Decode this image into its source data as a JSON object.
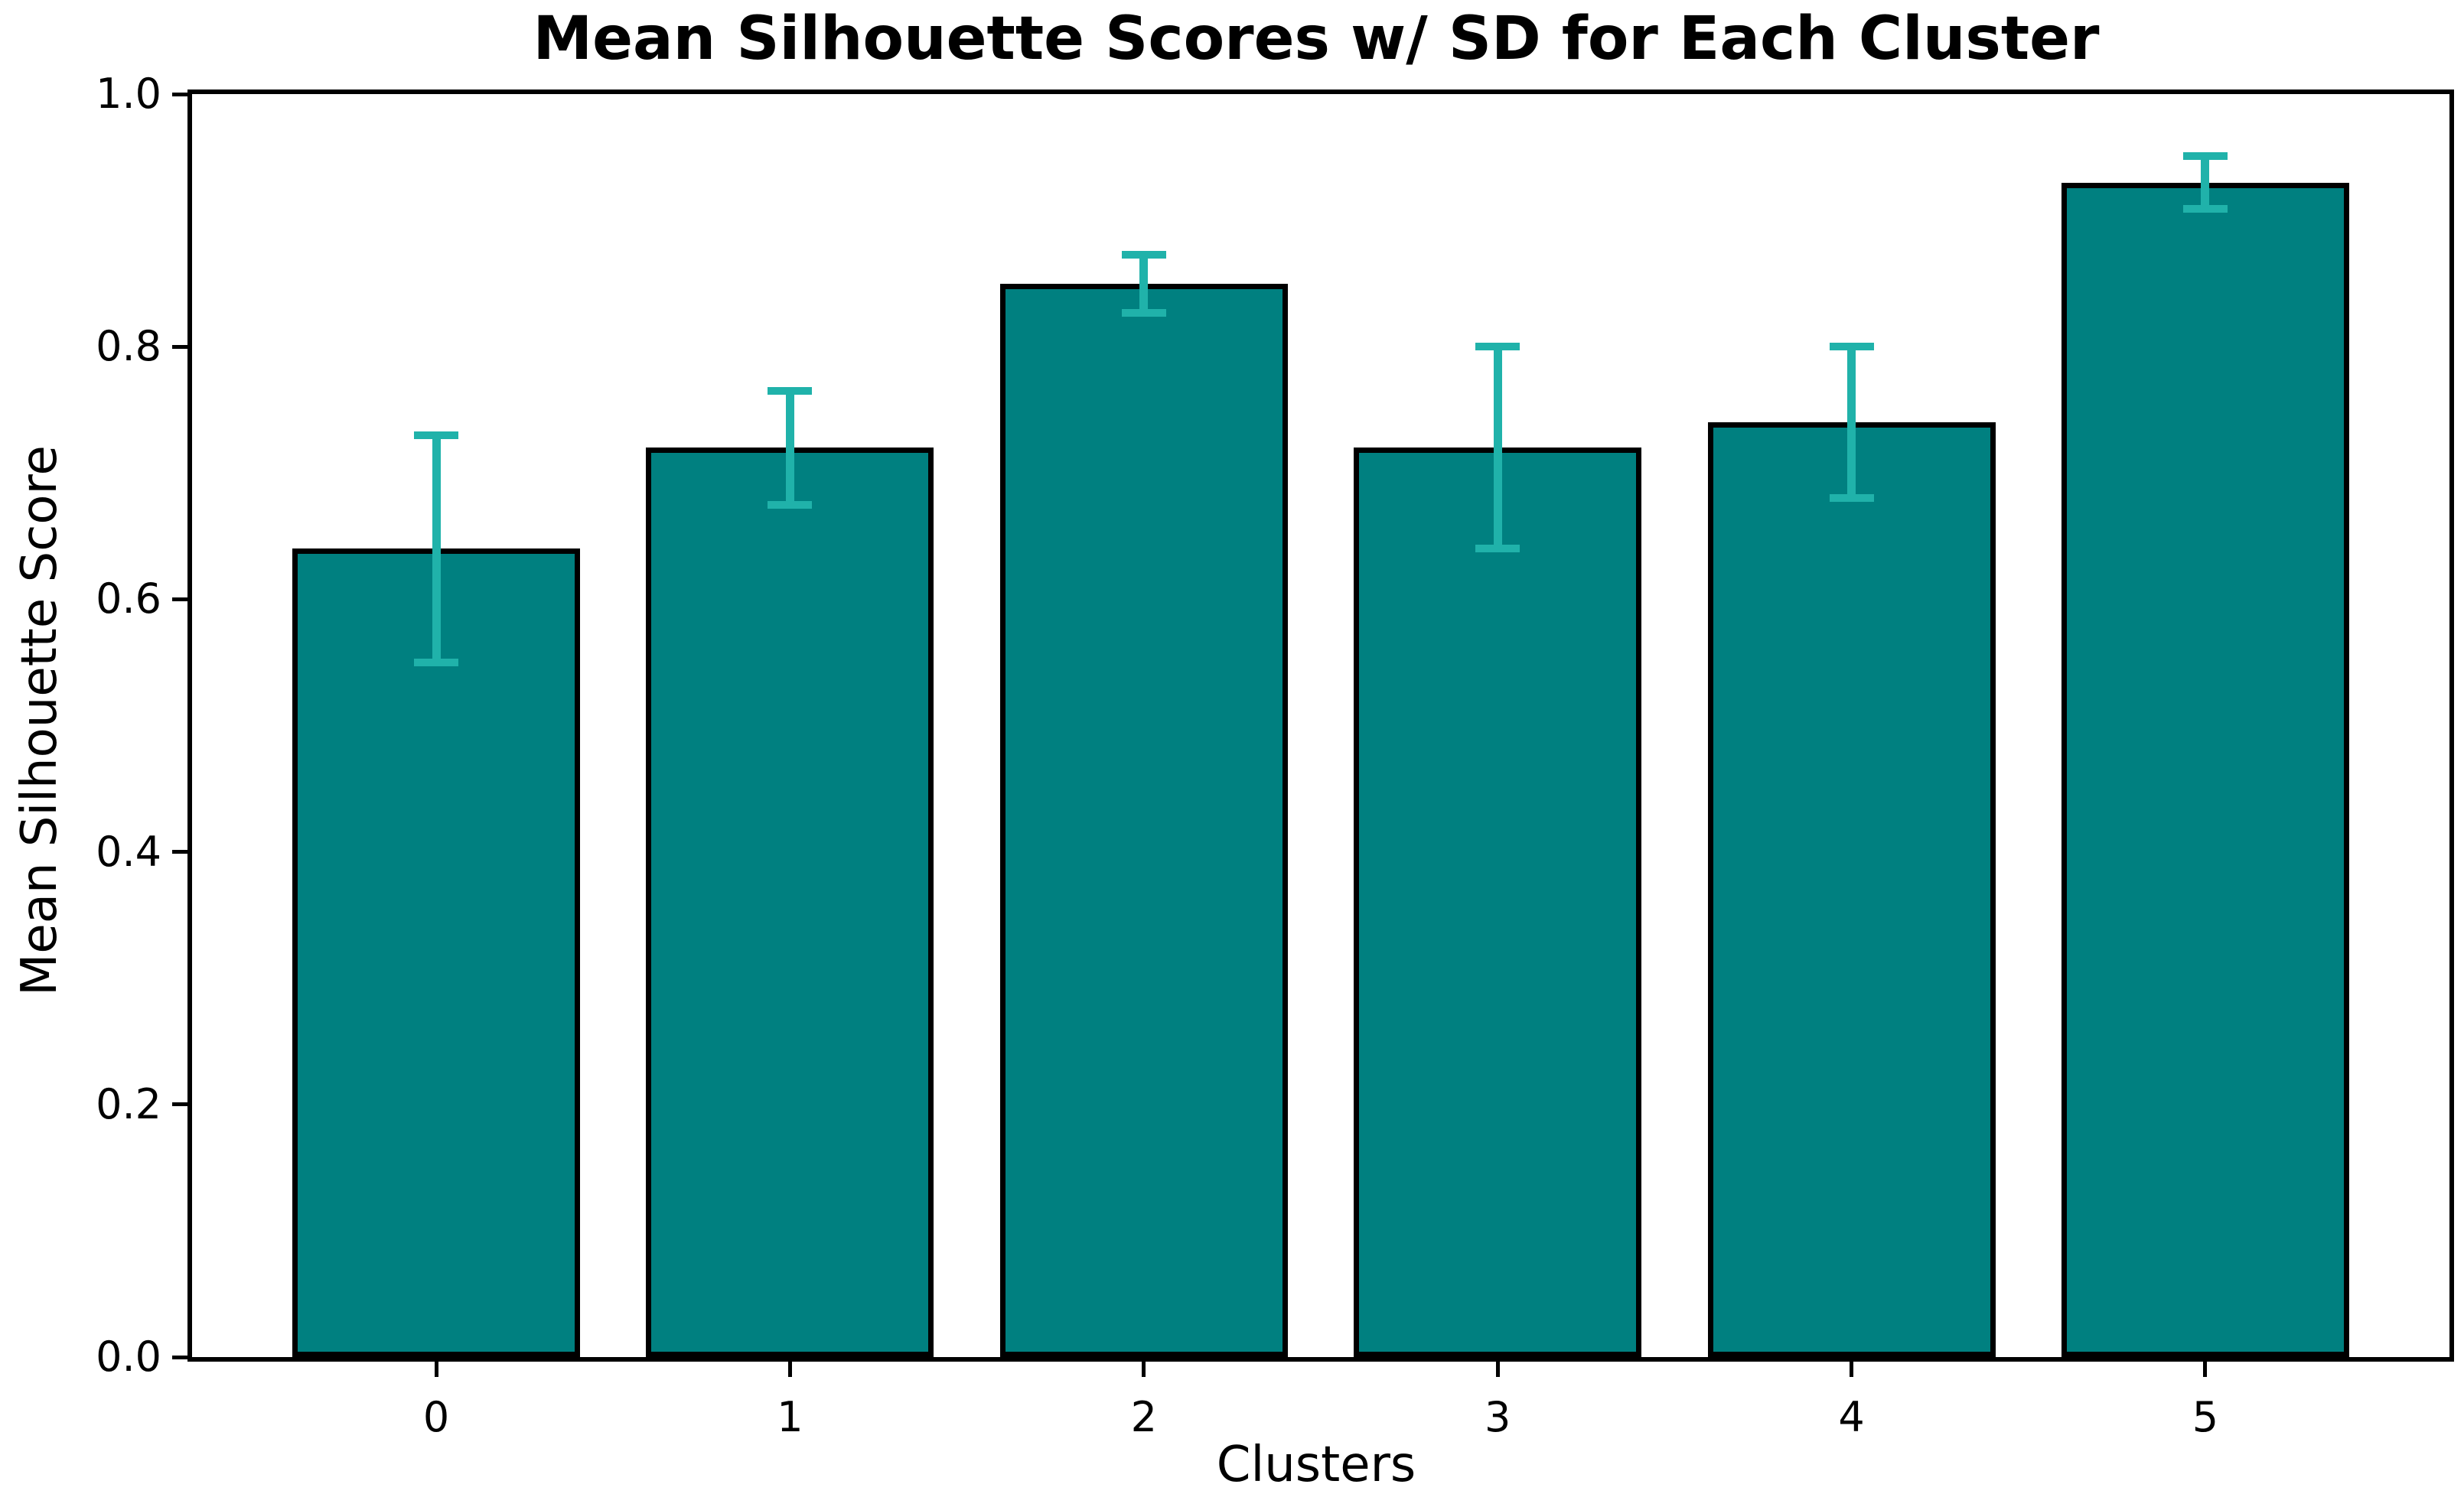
{
  "chart_data": {
    "type": "bar",
    "title": "Mean Silhouette Scores w/ SD for Each Cluster",
    "xlabel": "Clusters",
    "ylabel": "Mean Silhouette Score",
    "categories": [
      "0",
      "1",
      "2",
      "3",
      "4",
      "5"
    ],
    "series": [
      {
        "name": "Mean Silhouette Score",
        "values": [
          0.64,
          0.72,
          0.85,
          0.72,
          0.74,
          0.93
        ],
        "error_sd": [
          0.09,
          0.045,
          0.023,
          0.08,
          0.06,
          0.021
        ]
      }
    ],
    "ylim": [
      0.0,
      1.0
    ],
    "yticks": [
      "0.0",
      "0.2",
      "0.4",
      "0.6",
      "0.8",
      "1.0"
    ],
    "ytick_values": [
      0.0,
      0.2,
      0.4,
      0.6,
      0.8,
      1.0
    ],
    "grid": false,
    "legend_position": "none",
    "error_bar_style": "symmetric vertical with caps",
    "colors": {
      "bar_fill": "#008080",
      "bar_edge": "#000000",
      "error_bar": "#20B2AA",
      "axis": "#000000",
      "text": "#000000",
      "background": "#ffffff"
    }
  }
}
